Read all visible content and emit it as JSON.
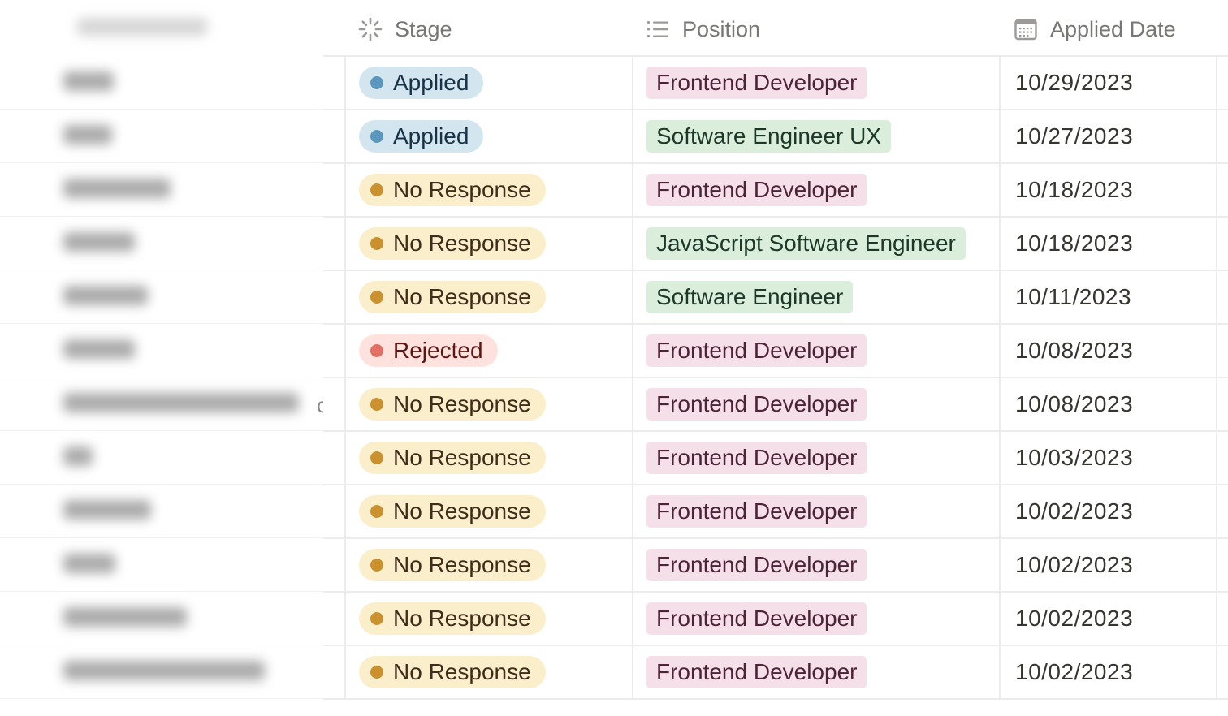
{
  "columns": {
    "stage": "Stage",
    "position": "Position",
    "applied_date": "Applied Date"
  },
  "colors": {
    "applied_bg": "#d3e5ef",
    "applied_dot": "#5b97bd",
    "applied_text": "#183347",
    "noresp_bg": "#fbeecb",
    "noresp_dot": "#cb912f",
    "noresp_text": "#402c1b",
    "rejected_bg": "#ffe2dd",
    "rejected_dot": "#e16f64",
    "rejected_text": "#5d1715",
    "pink_bg": "#f5e0e9",
    "pink_text": "#4c2337",
    "green_bg": "#dbeddb",
    "green_text": "#1c3829"
  },
  "rows": [
    {
      "stage": "Applied",
      "stage_kind": "applied",
      "position": "Frontend Developer",
      "position_color": "pink",
      "date": "10/29/2023"
    },
    {
      "stage": "Applied",
      "stage_kind": "applied",
      "position": "Software Engineer UX",
      "position_color": "green",
      "date": "10/27/2023"
    },
    {
      "stage": "No Response",
      "stage_kind": "noresp",
      "position": "Frontend Developer",
      "position_color": "pink",
      "date": "10/18/2023"
    },
    {
      "stage": "No Response",
      "stage_kind": "noresp",
      "position": "JavaScript Software Engineer",
      "position_color": "green",
      "date": "10/18/2023"
    },
    {
      "stage": "No Response",
      "stage_kind": "noresp",
      "position": "Software Engineer",
      "position_color": "green",
      "date": "10/11/2023"
    },
    {
      "stage": "Rejected",
      "stage_kind": "rejected",
      "position": "Frontend Developer",
      "position_color": "pink",
      "date": "10/08/2023"
    },
    {
      "stage": "No Response",
      "stage_kind": "noresp",
      "position": "Frontend Developer",
      "position_color": "pink",
      "date": "10/08/2023"
    },
    {
      "stage": "No Response",
      "stage_kind": "noresp",
      "position": "Frontend Developer",
      "position_color": "pink",
      "date": "10/03/2023"
    },
    {
      "stage": "No Response",
      "stage_kind": "noresp",
      "position": "Frontend Developer",
      "position_color": "pink",
      "date": "10/02/2023"
    },
    {
      "stage": "No Response",
      "stage_kind": "noresp",
      "position": "Frontend Developer",
      "position_color": "pink",
      "date": "10/02/2023"
    },
    {
      "stage": "No Response",
      "stage_kind": "noresp",
      "position": "Frontend Developer",
      "position_color": "pink",
      "date": "10/02/2023"
    },
    {
      "stage": "No Response",
      "stage_kind": "noresp",
      "position": "Frontend Developer",
      "position_color": "pink",
      "date": "10/02/2023"
    }
  ]
}
